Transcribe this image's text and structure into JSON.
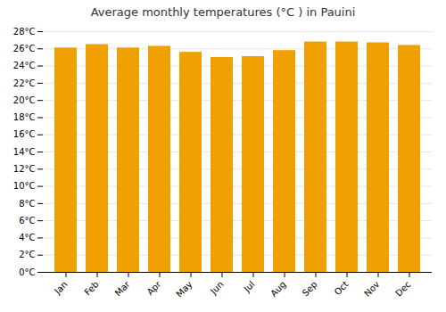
{
  "chart_data": {
    "type": "bar",
    "title": "Average monthly temperatures (°C ) in Pauini",
    "categories": [
      "Jan",
      "Feb",
      "Mar",
      "Apr",
      "May",
      "Jun",
      "Jul",
      "Aug",
      "Sep",
      "Oct",
      "Nov",
      "Dec"
    ],
    "values": [
      26.1,
      26.5,
      26.1,
      26.3,
      25.6,
      25.0,
      25.1,
      25.8,
      26.8,
      26.8,
      26.7,
      26.4
    ],
    "color": "#F0A000",
    "ylim": [
      0,
      28
    ],
    "yticks": [
      {
        "value": 0,
        "label": "0°C"
      },
      {
        "value": 2,
        "label": "2°C"
      },
      {
        "value": 4,
        "label": "4°C"
      },
      {
        "value": 6,
        "label": "6°C"
      },
      {
        "value": 8,
        "label": "8°C"
      },
      {
        "value": 10,
        "label": "10°C"
      },
      {
        "value": 12,
        "label": "12°C"
      },
      {
        "value": 14,
        "label": "14°C"
      },
      {
        "value": 16,
        "label": "16°C"
      },
      {
        "value": 18,
        "label": "18°C"
      },
      {
        "value": 20,
        "label": "20°C"
      },
      {
        "value": 22,
        "label": "22°C"
      },
      {
        "value": 24,
        "label": "24°C"
      },
      {
        "value": 26,
        "label": "26°C"
      },
      {
        "value": 28,
        "label": "28°C"
      }
    ],
    "grid": true
  }
}
